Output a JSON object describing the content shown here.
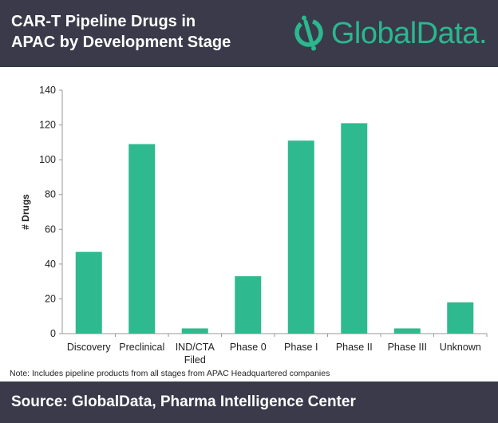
{
  "header": {
    "title_line1": "CAR-T Pipeline Drugs in",
    "title_line2": "APAC by Development Stage",
    "logo_text": "GlobalData.",
    "logo_icon": "globaldata-logo-icon"
  },
  "colors": {
    "header_bg": "#3a3a4a",
    "bar": "#2eba8e",
    "brand": "#2ab88f"
  },
  "chart_data": {
    "type": "bar",
    "categories": [
      "Discovery",
      "Preclinical",
      "IND/CTA Filed",
      "Phase 0",
      "Phase I",
      "Phase II",
      "Phase III",
      "Unknown"
    ],
    "category_lines": [
      [
        "Discovery"
      ],
      [
        "Preclinical"
      ],
      [
        "IND/CTA",
        "Filed"
      ],
      [
        "Phase 0"
      ],
      [
        "Phase I"
      ],
      [
        "Phase II"
      ],
      [
        "Phase III"
      ],
      [
        "Unknown"
      ]
    ],
    "values": [
      47,
      109,
      3,
      33,
      111,
      121,
      3,
      18
    ],
    "ylabel": "# Drugs",
    "xlabel": "",
    "ylim": [
      0,
      140
    ],
    "yticks": [
      0,
      20,
      40,
      60,
      80,
      100,
      120,
      140
    ],
    "grid": false
  },
  "note": "Note: Includes pipeline products from all stages from APAC Headquartered companies",
  "footer": {
    "source": "Source: GlobalData, Pharma Intelligence Center"
  }
}
